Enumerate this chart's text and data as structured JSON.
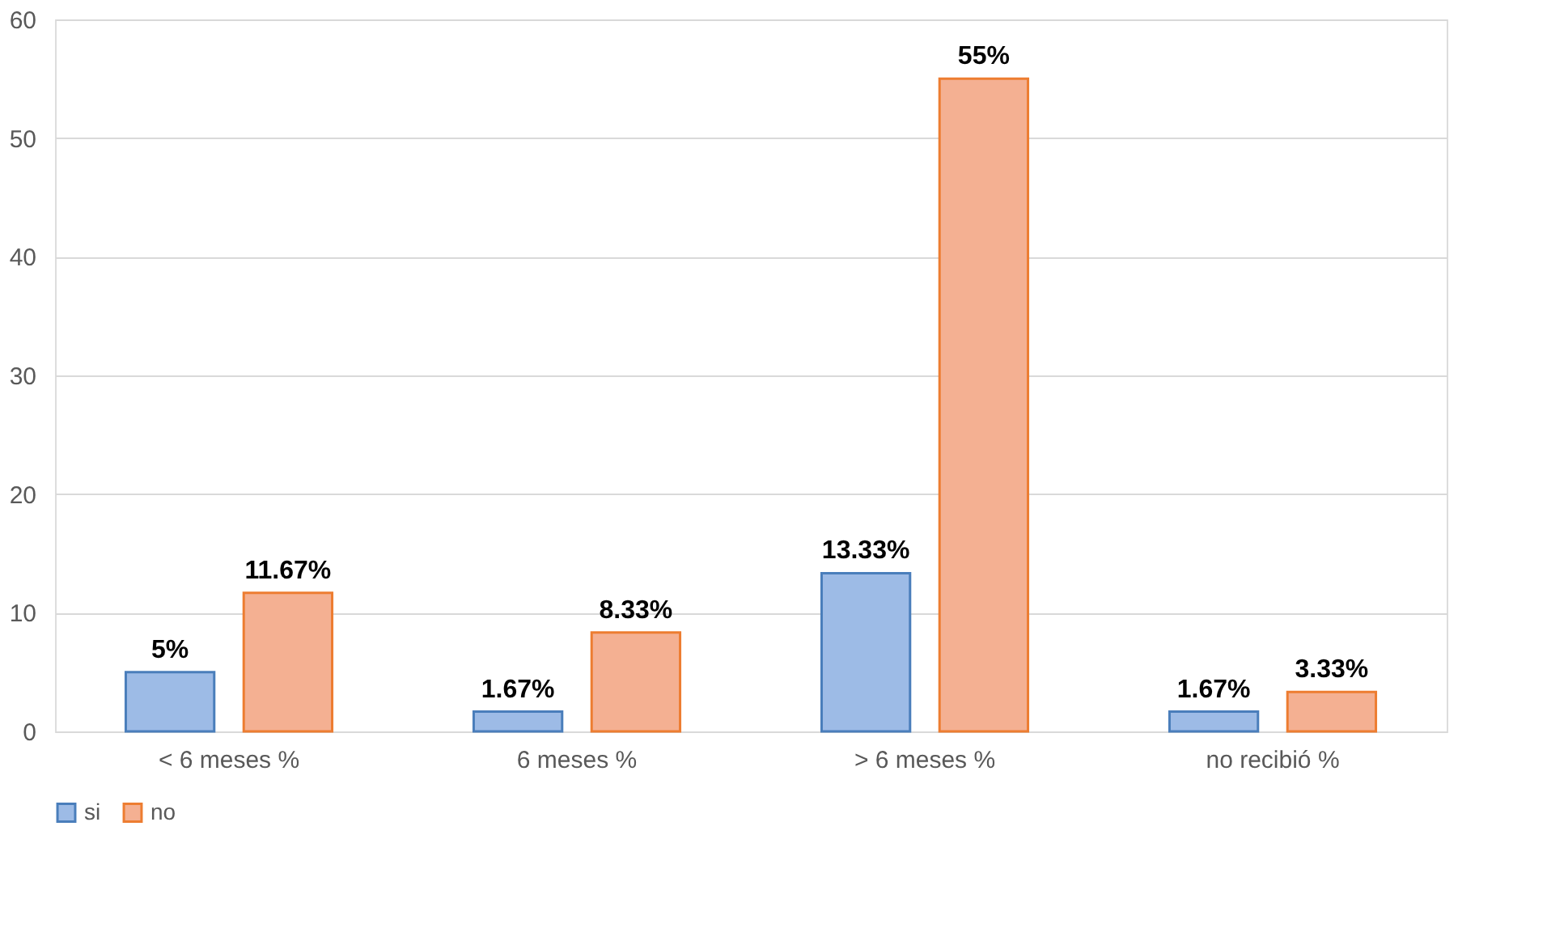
{
  "chart_data": {
    "type": "bar",
    "categories": [
      "< 6 meses %",
      "6 meses %",
      "> 6 meses %",
      "no recibió %"
    ],
    "series": [
      {
        "name": "si",
        "color": "#9dbbe6",
        "values": [
          5,
          1.67,
          13.33,
          1.67
        ],
        "value_labels": [
          "5%",
          "1.67%",
          "13.33%",
          "1.67%"
        ]
      },
      {
        "name": "no",
        "color": "#f4b092",
        "values": [
          11.67,
          8.33,
          55,
          3.33
        ],
        "value_labels": [
          "11.67%",
          "8.33%",
          "55%",
          "3.33%"
        ]
      }
    ],
    "ylim": [
      0,
      60
    ],
    "yticks": [
      0,
      10,
      20,
      30,
      40,
      50,
      60
    ],
    "grid": "y",
    "legend": "bottom"
  }
}
